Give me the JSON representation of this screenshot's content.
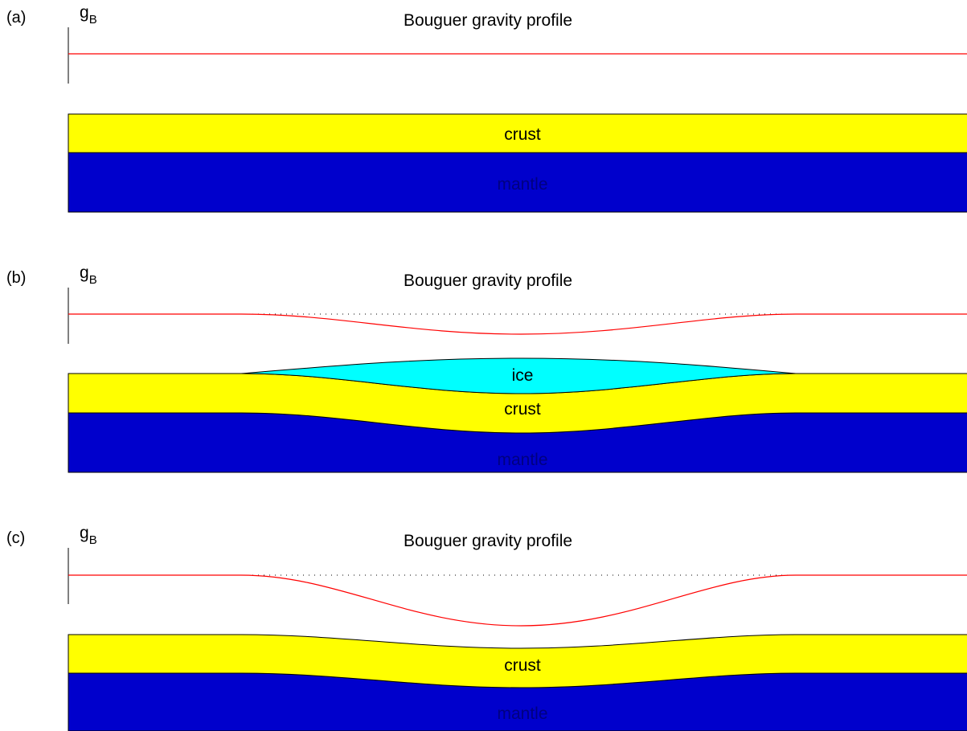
{
  "colors": {
    "crust": "#ffff00",
    "mantle": "#0000cc",
    "ice": "#00ffff",
    "profile_line": "#ff0000",
    "reference_dots": "#000000",
    "mantle_label": "#000080"
  },
  "panels": [
    {
      "id": "a",
      "label": "(a)",
      "axis_label": "g",
      "axis_subscript": "B",
      "title": "Bouguer gravity profile",
      "crust_label": "crust",
      "mantle_label": "mantle"
    },
    {
      "id": "b",
      "label": "(b)",
      "axis_label": "g",
      "axis_subscript": "B",
      "title": "Bouguer gravity profile",
      "ice_label": "ice",
      "crust_label": "crust",
      "mantle_label": "mantle"
    },
    {
      "id": "c",
      "label": "(c)",
      "axis_label": "g",
      "axis_subscript": "B",
      "title": "Bouguer gravity profile",
      "crust_label": "crust",
      "mantle_label": "mantle"
    }
  ]
}
